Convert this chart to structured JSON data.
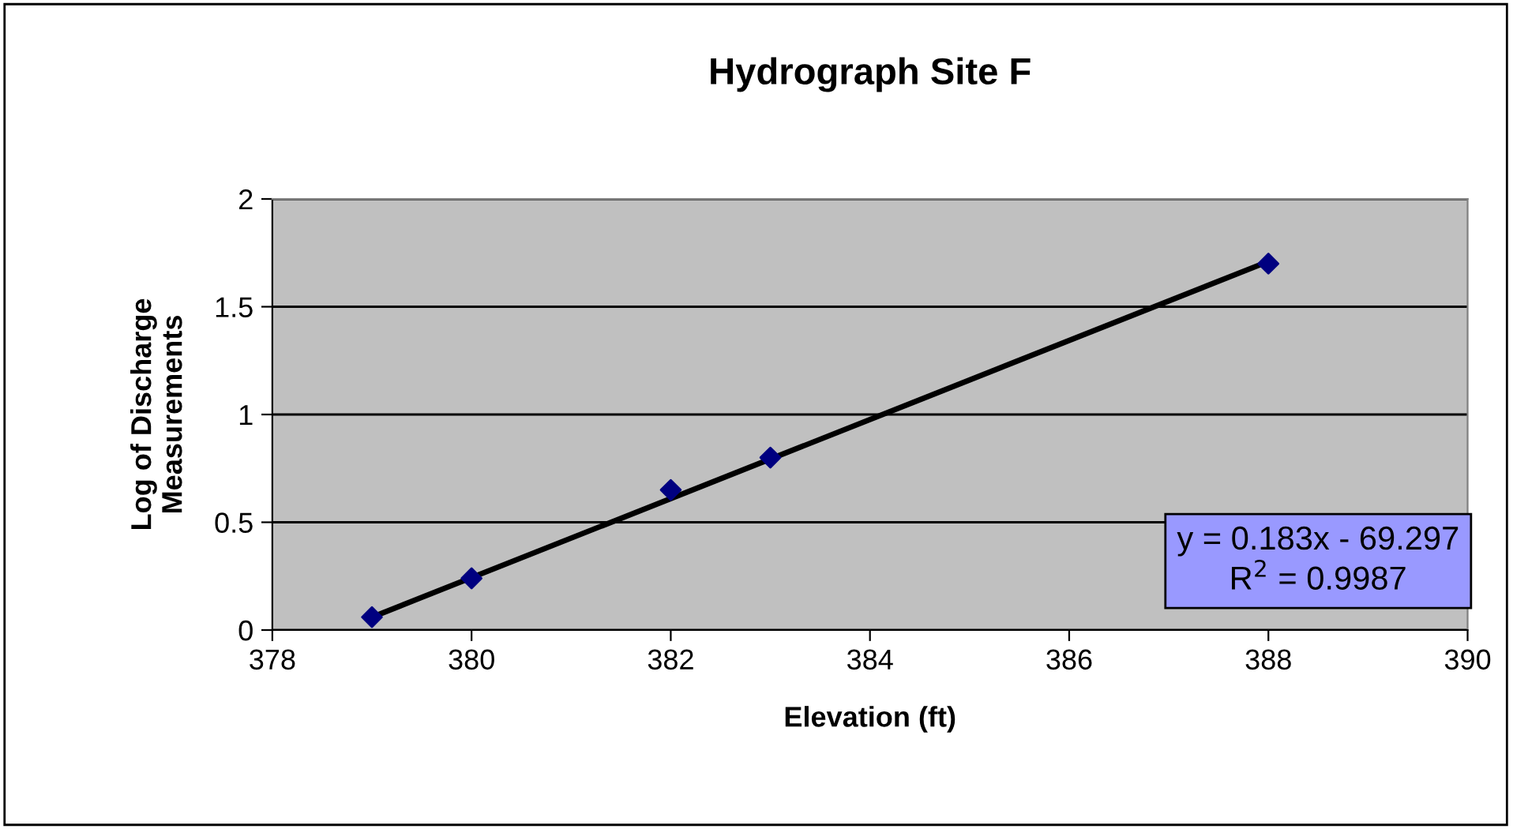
{
  "chart_data": {
    "type": "scatter",
    "title": "Hydrograph Site F",
    "xlabel": "Elevation (ft)",
    "ylabel": "Log of Discharge\nMeasurements",
    "series": [
      {
        "color": "#000080",
        "x": [
          379,
          380,
          382,
          383,
          388
        ],
        "values": [
          0.06,
          0.24,
          0.65,
          0.8,
          1.7
        ],
        "marker": "diamond"
      },
      {
        "type": "line",
        "color": "#000000",
        "x": [
          379,
          388
        ],
        "values": [
          0.06,
          1.71
        ],
        "marker": "none",
        "line_style": "solid"
      }
    ],
    "annotations": [
      "y = 0.183x - 69.297\nR$^{2}$ = 0.9987"
    ],
    "xlim": [
      378,
      390
    ],
    "xticks": [
      378,
      380,
      382,
      384,
      386,
      388,
      390
    ],
    "ylim": [
      0,
      2
    ],
    "yticks": [
      0,
      0.5,
      1,
      1.5,
      2
    ],
    "grid": "y",
    "legend": false
  }
}
